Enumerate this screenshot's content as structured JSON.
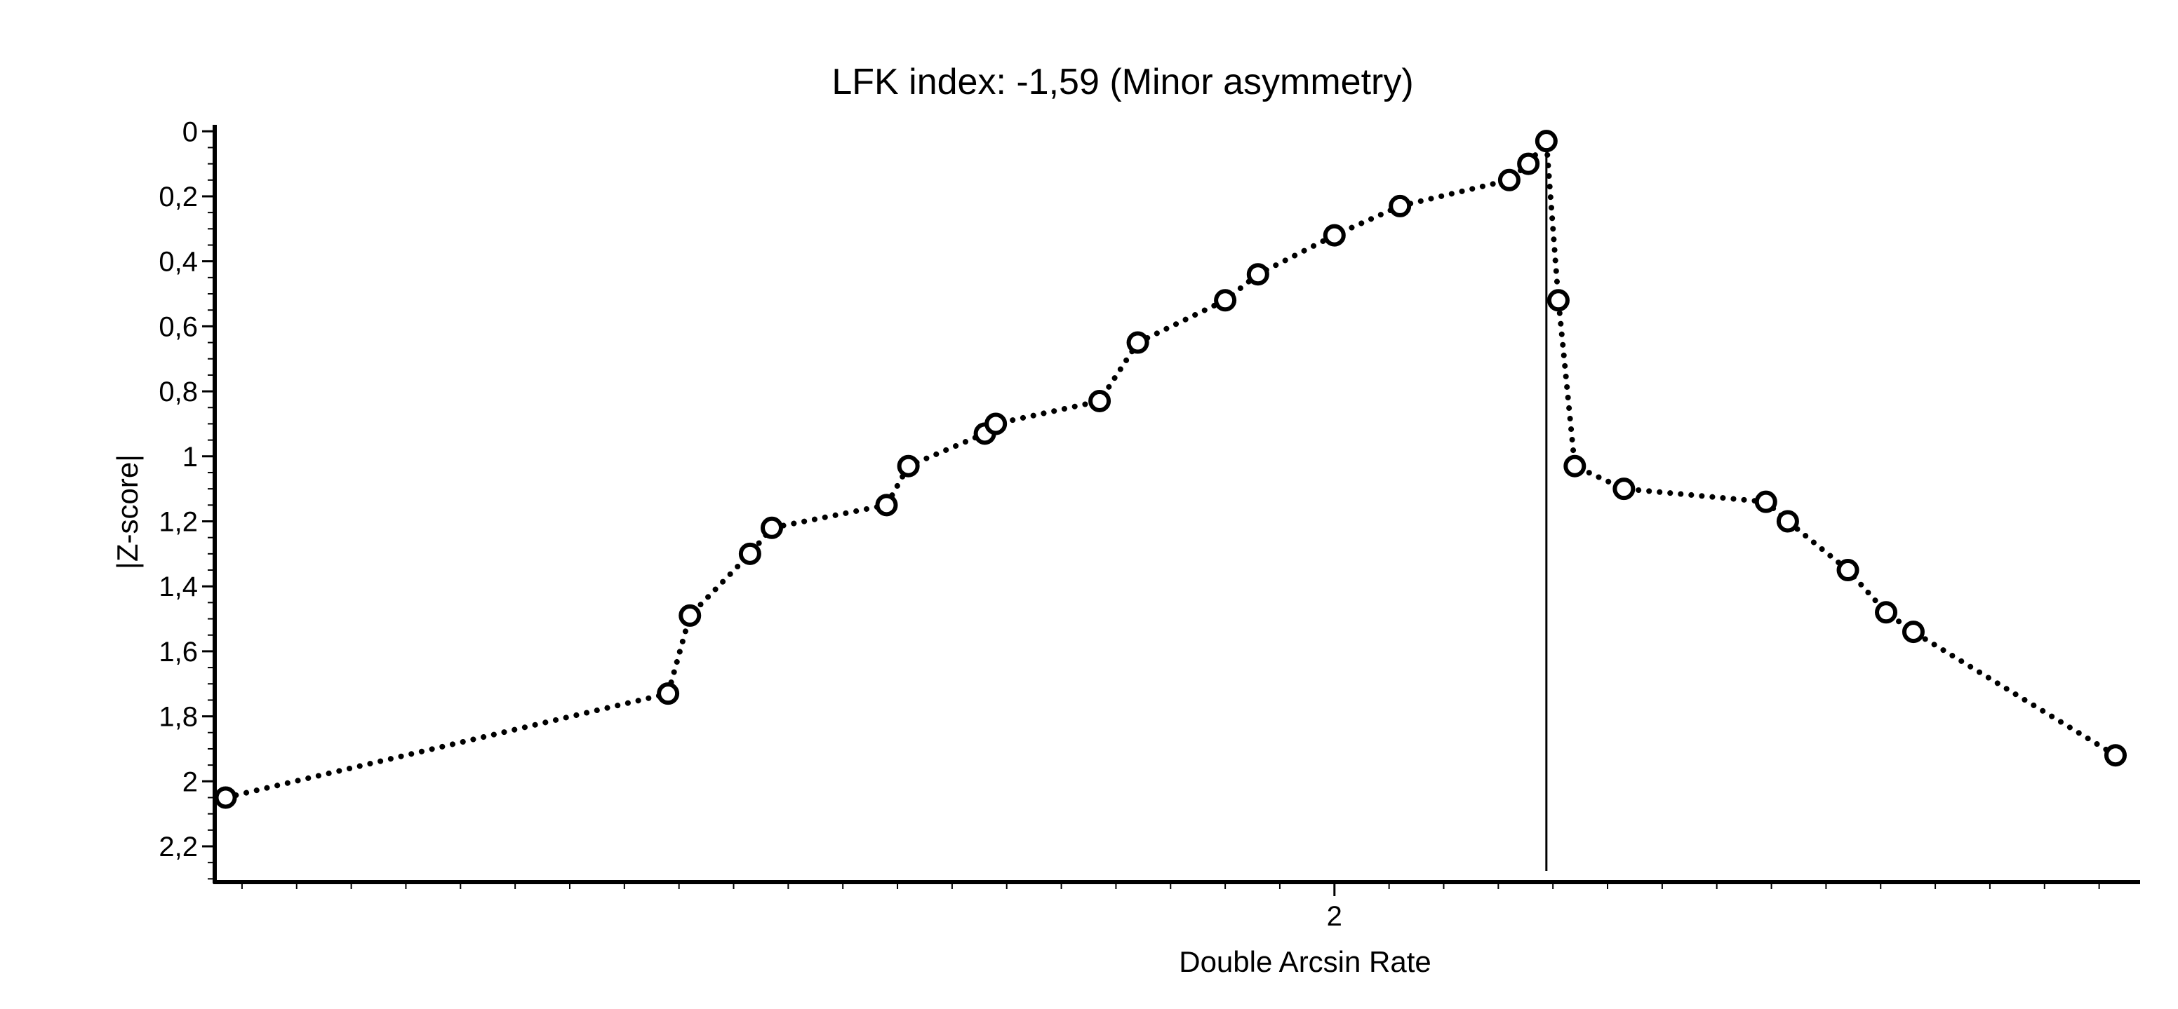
{
  "chart_data": {
    "type": "scatter",
    "title": "LFK index: -1,59 (Minor asymmetry)",
    "xlabel": "Double Arcsin Rate",
    "ylabel": "|Z-score|",
    "xlim": [
      -0.05,
      3.475
    ],
    "ylim": [
      2.31,
      -0.02
    ],
    "y_axis_inverted": true,
    "xticks": [
      2
    ],
    "xtick_labels": [
      "2"
    ],
    "yticks": [
      0,
      0.2,
      0.4,
      0.6,
      0.8,
      1,
      1.2,
      1.4,
      1.6,
      1.8,
      2,
      2.2
    ],
    "ytick_labels": [
      "0",
      "0,2",
      "0,4",
      "0,6",
      "0,8",
      "1",
      "1,2",
      "1,4",
      "1,6",
      "1,8",
      "2",
      "2,2"
    ],
    "grid": false,
    "legend": "none",
    "reference_line_x": 2.388,
    "connecting_line": "dotted",
    "marker": "open-circle",
    "points": [
      {
        "x": -0.03,
        "y": 2.05
      },
      {
        "x": 0.78,
        "y": 1.73
      },
      {
        "x": 0.82,
        "y": 1.49
      },
      {
        "x": 0.93,
        "y": 1.3
      },
      {
        "x": 0.97,
        "y": 1.22
      },
      {
        "x": 1.18,
        "y": 1.15
      },
      {
        "x": 1.22,
        "y": 1.03
      },
      {
        "x": 1.36,
        "y": 0.93
      },
      {
        "x": 1.38,
        "y": 0.9
      },
      {
        "x": 1.57,
        "y": 0.83
      },
      {
        "x": 1.64,
        "y": 0.65
      },
      {
        "x": 1.8,
        "y": 0.52
      },
      {
        "x": 1.86,
        "y": 0.44
      },
      {
        "x": 2.0,
        "y": 0.32
      },
      {
        "x": 2.12,
        "y": 0.23
      },
      {
        "x": 2.32,
        "y": 0.15
      },
      {
        "x": 2.355,
        "y": 0.1
      },
      {
        "x": 2.388,
        "y": 0.03
      },
      {
        "x": 2.41,
        "y": 0.52
      },
      {
        "x": 2.44,
        "y": 1.03
      },
      {
        "x": 2.53,
        "y": 1.1
      },
      {
        "x": 2.79,
        "y": 1.14
      },
      {
        "x": 2.83,
        "y": 1.2
      },
      {
        "x": 2.94,
        "y": 1.35
      },
      {
        "x": 3.01,
        "y": 1.48
      },
      {
        "x": 3.06,
        "y": 1.54
      },
      {
        "x": 3.43,
        "y": 1.92
      }
    ]
  }
}
